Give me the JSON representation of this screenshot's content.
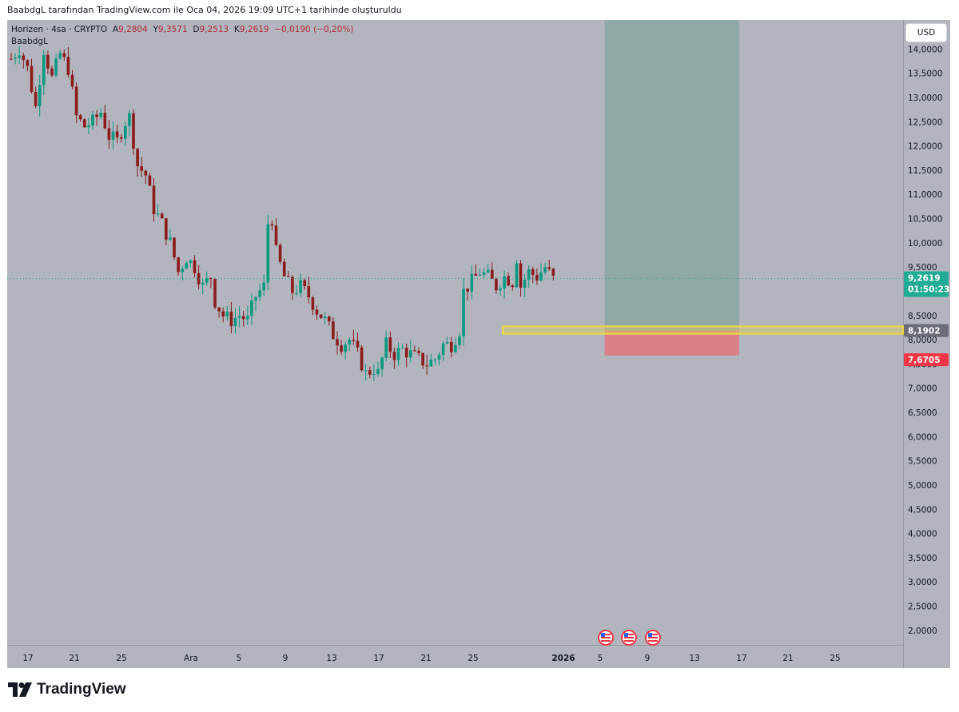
{
  "header": {
    "attribution": "BaabdgL tarafından TradingView.com ile Oca 04, 2026 19:09 UTC+1 tarihinde oluşturuldu"
  },
  "legend": {
    "symbol": "Horizen · 4sa · CRYPTO",
    "open_label": "A",
    "open": "9,2804",
    "high_label": "Y",
    "high": "9,3571",
    "low_label": "D",
    "low": "9,2513",
    "close_label": "K",
    "close": "9,2619",
    "change": "−0,0190 (−0,20%)",
    "author": "BaabdgL"
  },
  "toolbar": {
    "currency": "USD"
  },
  "brand": {
    "name": "TradingView"
  },
  "colors": {
    "plot_bg": "#b2b5be",
    "up": "#089981",
    "down": "#8b1a1a",
    "profit_zone": "#8fa9a6",
    "loss_zone": "#d98088",
    "level_line": "#e8d44d",
    "price_badge": "#22ab94",
    "stop_badge": "#f23645",
    "entry_badge": "#6a6d78"
  },
  "chart_data": {
    "type": "candlestick",
    "title": "Horizen · 4sa · CRYPTO",
    "ylim": [
      1.7,
      14.6
    ],
    "y_ticks": [
      "14,0000",
      "13,5000",
      "13,0000",
      "12,5000",
      "12,0000",
      "11,5000",
      "11,0000",
      "10,5000",
      "10,0000",
      "9,5000",
      "9,0000",
      "8,5000",
      "8,0000",
      "7,5000",
      "7,0000",
      "6,5000",
      "6,0000",
      "5,5000",
      "5,0000",
      "4,5000",
      "4,0000",
      "3,5000",
      "3,0000",
      "2,5000",
      "2,0000"
    ],
    "x_ticks": [
      {
        "label": "17",
        "bold": false
      },
      {
        "label": "21",
        "bold": false
      },
      {
        "label": "25",
        "bold": false
      },
      {
        "label": "Ara",
        "bold": false
      },
      {
        "label": "5",
        "bold": false
      },
      {
        "label": "9",
        "bold": false
      },
      {
        "label": "13",
        "bold": false
      },
      {
        "label": "17",
        "bold": false
      },
      {
        "label": "21",
        "bold": false
      },
      {
        "label": "25",
        "bold": false
      },
      {
        "label": "2026",
        "bold": true
      },
      {
        "label": "5",
        "bold": false
      },
      {
        "label": "9",
        "bold": false
      },
      {
        "label": "13",
        "bold": false
      },
      {
        "label": "17",
        "bold": false
      },
      {
        "label": "21",
        "bold": false
      },
      {
        "label": "25",
        "bold": false
      }
    ],
    "x_axis_note": "Nov 16 2025 to ~Jan 28 2026, 4h candles",
    "price_path": [
      [
        0,
        13.8
      ],
      [
        2,
        14.0
      ],
      [
        4,
        13.6
      ],
      [
        6,
        12.8
      ],
      [
        8,
        14.0
      ],
      [
        10,
        13.4
      ],
      [
        12,
        13.9
      ],
      [
        14,
        13.6
      ],
      [
        16,
        12.6
      ],
      [
        18,
        12.4
      ],
      [
        20,
        12.5
      ],
      [
        22,
        12.7
      ],
      [
        24,
        12.2
      ],
      [
        26,
        12.1
      ],
      [
        28,
        12.5
      ],
      [
        29,
        12.6
      ],
      [
        31,
        11.6
      ],
      [
        33,
        11.4
      ],
      [
        35,
        10.7
      ],
      [
        37,
        10.4
      ],
      [
        39,
        10.0
      ],
      [
        41,
        9.4
      ],
      [
        43,
        9.7
      ],
      [
        45,
        9.5
      ],
      [
        47,
        9.1
      ],
      [
        49,
        9.3
      ],
      [
        50,
        8.8
      ],
      [
        52,
        8.5
      ],
      [
        54,
        8.4
      ],
      [
        56,
        8.5
      ],
      [
        58,
        8.4
      ],
      [
        60,
        8.9
      ],
      [
        62,
        9.1
      ],
      [
        63,
        10.4
      ],
      [
        64,
        10.5
      ],
      [
        65,
        9.8
      ],
      [
        67,
        9.3
      ],
      [
        69,
        9.0
      ],
      [
        71,
        9.1
      ],
      [
        73,
        8.9
      ],
      [
        75,
        8.6
      ],
      [
        77,
        8.4
      ],
      [
        79,
        8.1
      ],
      [
        81,
        7.9
      ],
      [
        83,
        8.0
      ],
      [
        85,
        7.7
      ],
      [
        87,
        7.3
      ],
      [
        89,
        7.4
      ],
      [
        90,
        7.3
      ],
      [
        92,
        7.9
      ],
      [
        94,
        7.7
      ],
      [
        96,
        7.8
      ],
      [
        98,
        7.7
      ],
      [
        100,
        7.6
      ],
      [
        102,
        7.5
      ],
      [
        104,
        7.6
      ],
      [
        106,
        7.9
      ],
      [
        108,
        7.9
      ],
      [
        110,
        8.2
      ],
      [
        111,
        9.0
      ],
      [
        113,
        9.2
      ],
      [
        115,
        9.4
      ],
      [
        117,
        9.3
      ],
      [
        119,
        9.1
      ],
      [
        121,
        9.3
      ],
      [
        123,
        9.2
      ],
      [
        124,
        9.7
      ],
      [
        125,
        9.1
      ],
      [
        127,
        9.4
      ],
      [
        129,
        9.3
      ],
      [
        131,
        9.5
      ],
      [
        133,
        9.25
      ]
    ],
    "last_price": "9,2619",
    "countdown": "01:50:23",
    "entry_price": "8,1902",
    "stop_price": "7,6705",
    "entry_value": 8.1902,
    "stop_value": 7.6705,
    "target_value": 14.6,
    "events": [
      "economic-event",
      "economic-event",
      "economic-event"
    ]
  }
}
